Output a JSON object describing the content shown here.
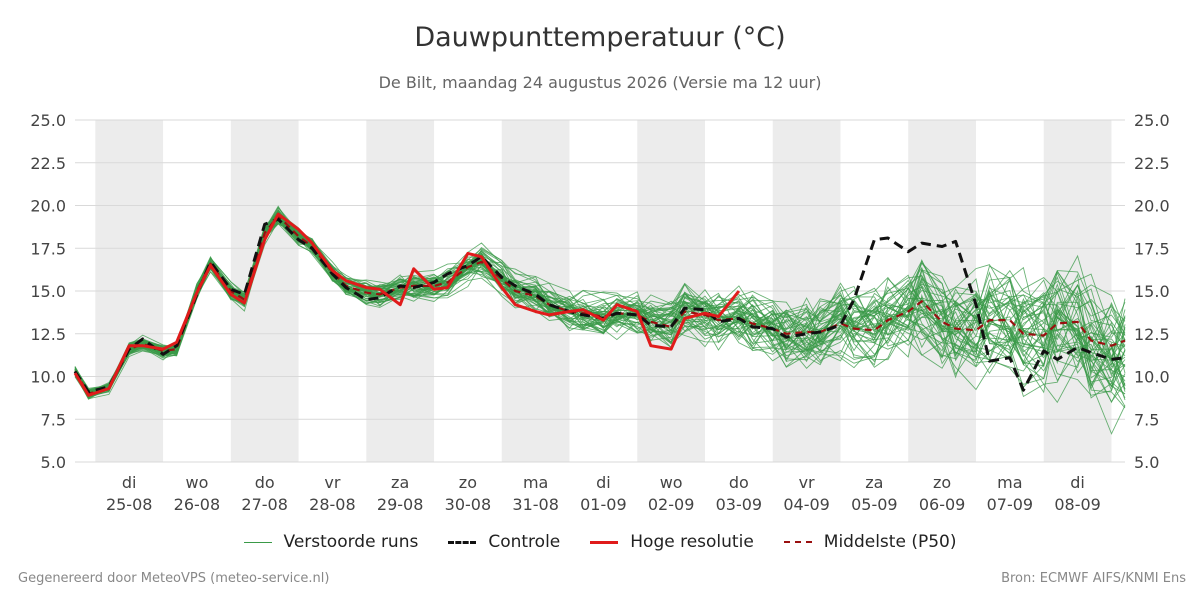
{
  "header": {
    "title": "Dauwpunttemperatuur (°C)",
    "subtitle": "De Bilt, maandag 24 augustus 2026 (Versie ma 12 uur)"
  },
  "legend": {
    "perturbed": "Verstoorde runs",
    "control": "Controle",
    "hires": "Hoge resolutie",
    "median": "Middelste (P50)"
  },
  "footer": {
    "left": "Gegenereerd door MeteoVPS (meteo-service.nl)",
    "right": "Bron: ECMWF AIFS/KNMI Ens"
  },
  "chart_data": {
    "type": "line",
    "ylim": [
      5.0,
      25.0
    ],
    "yticks": [
      "5.0",
      "7.5",
      "10.0",
      "12.5",
      "15.0",
      "17.5",
      "20.0",
      "22.5",
      "25.0"
    ],
    "x_days": [
      {
        "day": "di",
        "date": "25-08"
      },
      {
        "day": "wo",
        "date": "26-08"
      },
      {
        "day": "do",
        "date": "27-08"
      },
      {
        "day": "vr",
        "date": "28-08"
      },
      {
        "day": "za",
        "date": "29-08"
      },
      {
        "day": "zo",
        "date": "30-08"
      },
      {
        "day": "ma",
        "date": "31-08"
      },
      {
        "day": "di",
        "date": "01-09"
      },
      {
        "day": "wo",
        "date": "02-09"
      },
      {
        "day": "do",
        "date": "03-09"
      },
      {
        "day": "vr",
        "date": "04-09"
      },
      {
        "day": "za",
        "date": "05-09"
      },
      {
        "day": "zo",
        "date": "06-09"
      },
      {
        "day": "ma",
        "date": "07-09"
      },
      {
        "day": "di",
        "date": "08-09"
      }
    ],
    "x_units": "days after 24-08 00:00 (tick at 12:00 of each day)",
    "x_range": [
      0.7,
      16.2
    ],
    "weekend_shading": "alternating days shaded grey",
    "grid": true,
    "series": [
      {
        "name": "Controle",
        "color": "#111111",
        "style": "dashed",
        "x": [
          0.7,
          0.9,
          1.2,
          1.5,
          1.7,
          2.0,
          2.2,
          2.5,
          2.7,
          3.0,
          3.2,
          3.5,
          3.7,
          4.0,
          4.2,
          4.5,
          4.7,
          5.0,
          5.2,
          5.5,
          5.7,
          6.0,
          6.2,
          6.5,
          6.7,
          7.0,
          7.2,
          7.5,
          7.7,
          8.0,
          8.2,
          8.5,
          8.7,
          9.0,
          9.2,
          9.5,
          9.7,
          10.0,
          10.2,
          10.5,
          10.7,
          11.0,
          11.2,
          11.5,
          11.7,
          12.0,
          12.2,
          12.5,
          12.7,
          13.0,
          13.2,
          13.5,
          13.7,
          14.0,
          14.2,
          14.5,
          14.7,
          15.0,
          15.2,
          15.5,
          15.7,
          16.0,
          16.2
        ],
        "y": [
          10.3,
          9.1,
          9.4,
          11.6,
          12.2,
          11.3,
          11.8,
          14.8,
          16.7,
          15.1,
          14.8,
          18.9,
          19.2,
          18.0,
          17.5,
          16.0,
          15.2,
          14.5,
          14.6,
          15.3,
          15.2,
          15.5,
          16.0,
          16.5,
          17.0,
          15.8,
          15.3,
          14.8,
          14.2,
          13.8,
          13.6,
          13.4,
          13.7,
          13.6,
          13.0,
          12.9,
          14.0,
          13.9,
          13.2,
          13.4,
          12.9,
          12.8,
          12.3,
          12.5,
          12.6,
          13.0,
          14.5,
          18.0,
          18.1,
          17.3,
          17.8,
          17.6,
          17.9,
          14.2,
          10.9,
          11.1,
          9.2,
          11.5,
          11.0,
          11.7,
          11.4,
          11.0,
          11.1
        ]
      },
      {
        "name": "Hoge resolutie",
        "color": "#e01b1b",
        "style": "solid",
        "x": [
          0.7,
          0.9,
          1.2,
          1.5,
          1.7,
          2.0,
          2.2,
          2.5,
          2.7,
          3.0,
          3.2,
          3.5,
          3.7,
          4.0,
          4.2,
          4.5,
          4.7,
          5.0,
          5.2,
          5.5,
          5.7,
          6.0,
          6.2,
          6.5,
          6.7,
          7.0,
          7.2,
          7.5,
          7.7,
          8.0,
          8.2,
          8.5,
          8.7,
          9.0,
          9.2,
          9.5,
          9.7,
          10.0,
          10.2,
          10.5
        ],
        "y": [
          10.2,
          8.9,
          9.3,
          11.8,
          11.8,
          11.6,
          12.0,
          14.9,
          16.5,
          14.8,
          14.3,
          18.0,
          19.5,
          18.6,
          17.8,
          16.2,
          15.6,
          15.2,
          15.1,
          14.2,
          16.3,
          15.1,
          15.2,
          17.2,
          17.0,
          15.2,
          14.2,
          13.8,
          13.6,
          13.8,
          13.9,
          13.3,
          14.2,
          13.8,
          11.8,
          11.6,
          13.4,
          13.7,
          13.5,
          15.0
        ]
      },
      {
        "name": "Middelste (P50)",
        "color": "#9a1010",
        "style": "dashed",
        "x": [
          0.7,
          0.9,
          1.2,
          1.5,
          1.7,
          2.0,
          2.2,
          2.5,
          2.7,
          3.0,
          3.2,
          3.5,
          3.7,
          4.0,
          4.2,
          4.5,
          4.7,
          5.0,
          5.2,
          5.5,
          5.7,
          6.0,
          6.2,
          6.5,
          6.7,
          7.0,
          7.2,
          7.5,
          7.7,
          8.0,
          8.2,
          8.5,
          8.7,
          9.0,
          9.2,
          9.5,
          9.7,
          10.0,
          10.2,
          10.5,
          10.7,
          11.0,
          11.2,
          11.5,
          11.7,
          12.0,
          12.2,
          12.5,
          12.7,
          13.0,
          13.2,
          13.5,
          13.7,
          14.0,
          14.2,
          14.5,
          14.7,
          15.0,
          15.2,
          15.5,
          15.7,
          16.0,
          16.2
        ],
        "y": [
          10.3,
          9.0,
          9.3,
          11.6,
          11.9,
          11.5,
          11.6,
          15.0,
          16.6,
          15.0,
          14.5,
          18.4,
          19.4,
          18.2,
          17.6,
          16.1,
          15.3,
          14.9,
          14.8,
          15.2,
          15.3,
          15.3,
          15.5,
          16.4,
          16.7,
          15.7,
          15.0,
          14.7,
          14.2,
          13.8,
          13.7,
          13.5,
          13.7,
          13.6,
          13.2,
          12.9,
          13.8,
          13.6,
          13.3,
          13.4,
          13.1,
          12.8,
          12.5,
          12.6,
          12.6,
          13.1,
          12.8,
          12.7,
          13.3,
          13.8,
          14.4,
          13.2,
          12.8,
          12.7,
          13.3,
          13.3,
          12.5,
          12.4,
          13.1,
          13.2,
          12.1,
          11.8,
          12.1
        ]
      },
      {
        "name": "Verstoorde runs",
        "color": "#3a9a48",
        "style": "thin",
        "note": "50 ensemble members scattered around the P50 median with spread widening over time (approx. ±0.5 °C at start to ±4 °C at end)"
      }
    ]
  }
}
